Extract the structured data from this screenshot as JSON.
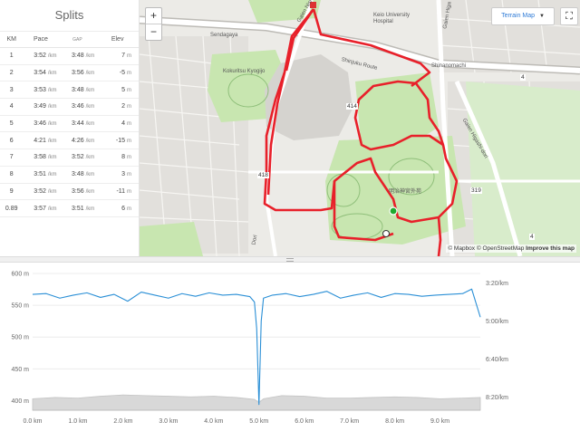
{
  "splits": {
    "title": "Splits",
    "headers": {
      "km": "KM",
      "pace": "Pace",
      "gap": "GAP",
      "elev": "Elev"
    },
    "pace_unit": "/km",
    "elev_unit": "m",
    "rows": [
      {
        "km": "1",
        "pace": "3:52",
        "gap": "3:48",
        "elev": "7"
      },
      {
        "km": "2",
        "pace": "3:54",
        "gap": "3:56",
        "elev": "-5"
      },
      {
        "km": "3",
        "pace": "3:53",
        "gap": "3:48",
        "elev": "5"
      },
      {
        "km": "4",
        "pace": "3:49",
        "gap": "3:46",
        "elev": "2"
      },
      {
        "km": "5",
        "pace": "3:46",
        "gap": "3:44",
        "elev": "4"
      },
      {
        "km": "6",
        "pace": "4:21",
        "gap": "4:26",
        "elev": "-15"
      },
      {
        "km": "7",
        "pace": "3:58",
        "gap": "3:52",
        "elev": "8"
      },
      {
        "km": "8",
        "pace": "3:51",
        "gap": "3:48",
        "elev": "3"
      },
      {
        "km": "9",
        "pace": "3:52",
        "gap": "3:56",
        "elev": "-11"
      },
      {
        "km": "0.89",
        "pace": "3:57",
        "gap": "3:51",
        "elev": "6"
      }
    ]
  },
  "map": {
    "zoom_in": "+",
    "zoom_out": "−",
    "terrain_label": "Terrain Map",
    "fullscreen_glyph": "⛶",
    "attribution": {
      "mapbox": "© Mapbox",
      "osm": "© OpenStreetMap",
      "improve": "Improve this map"
    },
    "labels": {
      "keio": "Keio University\nHospital",
      "shinanomachi": "Shinanomachi",
      "shinjuku_route": "Shinjuku Route",
      "gaien_nishi": "Gaien Nishi",
      "gaien_higashi": "Gaien Higashi-dori",
      "gaien_top": "Gaien Higa",
      "kokuritsu": "Kokuritsu Kyogijo",
      "sendagaya": "Sendagaya",
      "meiji": "明治神宮外苑",
      "dori": "Dori",
      "r414": "414",
      "r4": "4",
      "r319": "319",
      "r418": "418",
      "r4b": "4"
    },
    "route_color": "#e8202a",
    "park_color": "#c8e6b0",
    "road_color": "#ffffff"
  },
  "chart_data": {
    "type": "area",
    "x_label_ticks": [
      "0.0 km",
      "1.0 km",
      "2.0 km",
      "3.0 km",
      "4.0 km",
      "5.0 km",
      "6.0 km",
      "7.0 km",
      "8.0 km",
      "9.0 km"
    ],
    "x_ticks_values": [
      0,
      1,
      2,
      3,
      4,
      5,
      6,
      7,
      8,
      9
    ],
    "xlim": [
      0,
      9.89
    ],
    "elevation": {
      "name": "",
      "ylim": [
        385,
        600
      ],
      "ticks": [
        400,
        450,
        500,
        550,
        600
      ],
      "tick_labels": [
        "400 m",
        "450 m",
        "500 m",
        "550 m",
        "600 m"
      ],
      "x": [
        0,
        0.5,
        1,
        1.5,
        2,
        2.5,
        3,
        3.5,
        4,
        4.5,
        4.9,
        5,
        5.1,
        5.5,
        6,
        6.5,
        7,
        7.5,
        8,
        8.5,
        9,
        9.5,
        9.89
      ],
      "values": [
        403,
        405,
        404,
        407,
        409,
        408,
        407,
        406,
        407,
        405,
        402,
        397,
        403,
        408,
        407,
        404,
        404,
        405,
        406,
        405,
        403,
        404,
        405
      ]
    },
    "pace": {
      "name": "",
      "ticks_labels": [
        "3:20/km",
        "5:00/km",
        "6:40/km",
        "8:20/km"
      ],
      "ticks_seconds": [
        200,
        300,
        400,
        500
      ],
      "ylim_seconds": [
        175,
        535
      ],
      "x": [
        0,
        0.3,
        0.6,
        0.9,
        1.2,
        1.5,
        1.8,
        2.1,
        2.4,
        2.7,
        3.0,
        3.3,
        3.6,
        3.9,
        4.2,
        4.5,
        4.8,
        4.9,
        4.95,
        5.0,
        5.05,
        5.1,
        5.3,
        5.6,
        5.9,
        6.2,
        6.5,
        6.8,
        7.1,
        7.4,
        7.7,
        8.0,
        8.3,
        8.6,
        8.9,
        9.2,
        9.5,
        9.7,
        9.89
      ],
      "values": [
        230,
        228,
        240,
        232,
        226,
        238,
        230,
        248,
        224,
        232,
        240,
        228,
        235,
        226,
        232,
        230,
        236,
        250,
        320,
        520,
        300,
        240,
        232,
        228,
        236,
        230,
        222,
        240,
        232,
        226,
        238,
        228,
        230,
        235,
        232,
        230,
        228,
        216,
        290
      ]
    }
  }
}
